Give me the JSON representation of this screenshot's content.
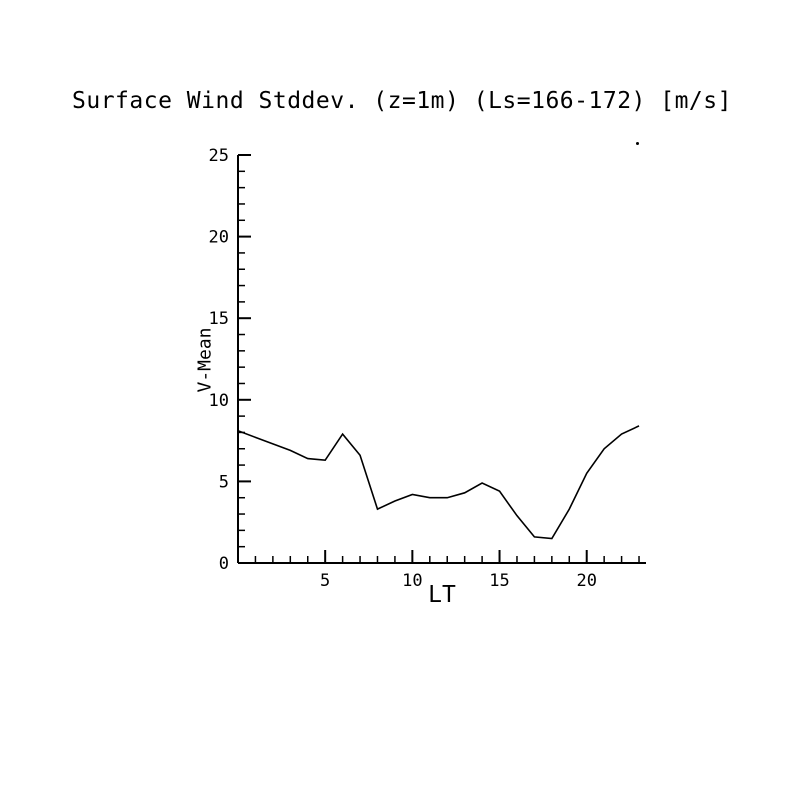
{
  "chart_data": {
    "type": "line",
    "title": "Surface Wind Stddev. (z=1m) (Ls=166-172) [m/s]",
    "xlabel": "LT",
    "ylabel": "V-Mean",
    "xlim": [
      0,
      23.4
    ],
    "ylim": [
      0,
      25
    ],
    "grid": false,
    "legend": "none",
    "x_major_ticks": [
      5,
      10,
      15,
      20
    ],
    "y_major_ticks": [
      0,
      5,
      10,
      15,
      20,
      25
    ],
    "x_minor_step": 1,
    "y_minor_step": 1,
    "x": [
      0,
      1,
      2,
      3,
      4,
      5,
      6,
      7,
      8,
      9,
      10,
      11,
      12,
      13,
      14,
      15,
      16,
      17,
      18,
      19,
      20,
      21,
      22,
      23
    ],
    "values": [
      8.1,
      7.7,
      7.3,
      6.9,
      6.4,
      6.3,
      7.9,
      6.6,
      3.3,
      3.8,
      4.2,
      4.0,
      4.0,
      4.3,
      4.9,
      4.4,
      2.9,
      1.6,
      1.5,
      3.3,
      5.5,
      7.0,
      7.9,
      8.4
    ],
    "line_color": "#000000",
    "background_color": "#ffffff"
  }
}
